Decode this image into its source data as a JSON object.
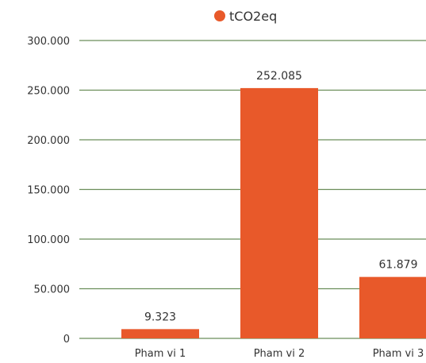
{
  "chart_data": {
    "type": "bar",
    "title": "",
    "xlabel": "",
    "ylabel": "",
    "categories": [
      "Pham vi 1",
      "Pham vi 2",
      "Pham vi 3"
    ],
    "series": [
      {
        "name": "tCO2eq",
        "values": [
          9.323,
          252.085,
          61.879
        ],
        "value_labels": [
          "9.323",
          "252.085",
          "61.879"
        ]
      }
    ],
    "ylim": [
      0,
      300
    ],
    "yticks": [
      {
        "value": 0,
        "label": "0"
      },
      {
        "value": 50,
        "label": "50.000"
      },
      {
        "value": 100,
        "label": "100.000"
      },
      {
        "value": 150,
        "label": "150.000"
      },
      {
        "value": 200,
        "label": "200.000"
      },
      {
        "value": 250,
        "label": "250.000"
      },
      {
        "value": 300,
        "label": "300.000"
      }
    ],
    "grid": true,
    "legend_position": "top",
    "colors": {
      "bar": "#E8592A",
      "grid": "#6B8E5A",
      "text": "#333333"
    }
  }
}
